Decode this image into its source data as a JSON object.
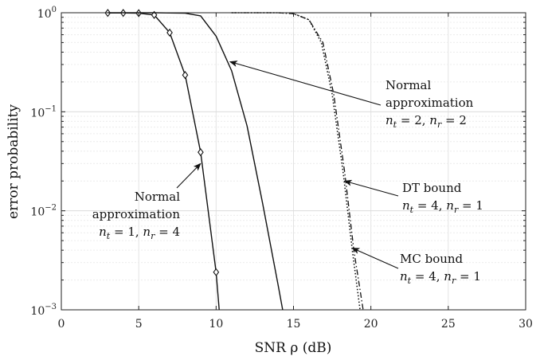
{
  "chart_data": {
    "type": "line",
    "title": "",
    "xlabel": "SNR ρ (dB)",
    "ylabel": "error probability",
    "xlim": [
      0,
      30
    ],
    "ylim": [
      0.001,
      1
    ],
    "yscale": "log",
    "grid": true,
    "x_ticks": [
      0,
      5,
      10,
      15,
      20,
      25,
      30
    ],
    "x_tick_labels": [
      "0",
      "5",
      "10",
      "15",
      "20",
      "25",
      "30"
    ],
    "y_ticks": [
      0.001,
      0.01,
      0.1,
      1
    ],
    "y_tick_labels": [
      {
        "base": "10",
        "exp": "−3"
      },
      {
        "base": "10",
        "exp": "−2"
      },
      {
        "base": "10",
        "exp": "−1"
      },
      {
        "base": "10",
        "exp": "0"
      }
    ],
    "series": [
      {
        "name": "Normal approximation n_t=1, n_r=4",
        "style": "solid-diamond",
        "x": [
          3,
          4,
          5,
          6,
          7,
          8,
          9,
          10,
          10.2
        ],
        "y": [
          0.995,
          0.995,
          0.99,
          0.95,
          0.63,
          0.235,
          0.039,
          0.0024,
          0.001
        ]
      },
      {
        "name": "Normal approximation n_t=2, n_r=2",
        "style": "solid",
        "x": [
          3,
          6,
          8,
          9,
          10,
          11,
          12,
          13,
          14,
          14.3
        ],
        "y": [
          1,
          1,
          0.99,
          0.93,
          0.58,
          0.26,
          0.072,
          0.012,
          0.0018,
          0.001
        ]
      },
      {
        "name": "DT bound n_t=4, n_r=1",
        "style": "dotted",
        "x": [
          11,
          14,
          15,
          16,
          16.8,
          17.5,
          18.2,
          18.8,
          19.3
        ],
        "y": [
          1,
          1,
          0.98,
          0.85,
          0.5,
          0.15,
          0.025,
          0.004,
          0.001
        ]
      },
      {
        "name": "MC bound n_t=4, n_r=1",
        "style": "dashdot",
        "x": [
          11,
          14,
          15,
          16,
          16.9,
          17.6,
          18.3,
          18.9,
          19.5
        ],
        "y": [
          1,
          1,
          0.98,
          0.85,
          0.5,
          0.15,
          0.025,
          0.004,
          0.001
        ]
      }
    ],
    "annotations": [
      {
        "name": "annotation-nt1-nr4",
        "lines": [
          "Normal",
          "approximation"
        ],
        "math": "n_t = 1, n_r = 4",
        "math_parts": {
          "a": "n",
          "a_sub": "t",
          "a_val": " = 1, ",
          "b": "n",
          "b_sub": "r",
          "b_val": " = 4"
        },
        "arrow_to": [
          9,
          0.03
        ]
      },
      {
        "name": "annotation-nt2-nr2",
        "lines": [
          "Normal",
          "approximation"
        ],
        "math": "n_t = 2, n_r = 2",
        "math_parts": {
          "a": "n",
          "a_sub": "t",
          "a_val": " = 2, ",
          "b": "n",
          "b_sub": "r",
          "b_val": " = 2"
        },
        "arrow_to": [
          10.9,
          0.32
        ]
      },
      {
        "name": "annotation-dt-bound",
        "lines": [
          "DT bound"
        ],
        "math": "n_t = 4, n_r = 1",
        "math_parts": {
          "a": "n",
          "a_sub": "t",
          "a_val": " = 4, ",
          "b": "n",
          "b_sub": "r",
          "b_val": " = 1"
        },
        "arrow_to": [
          18.3,
          0.02
        ]
      },
      {
        "name": "annotation-mc-bound",
        "lines": [
          "MC bound"
        ],
        "math": "n_t = 4, n_r = 1",
        "math_parts": {
          "a": "n",
          "a_sub": "t",
          "a_val": " = 4, ",
          "b": "n",
          "b_sub": "r",
          "b_val": " = 1"
        },
        "arrow_to": [
          18.8,
          0.0042
        ]
      }
    ]
  }
}
